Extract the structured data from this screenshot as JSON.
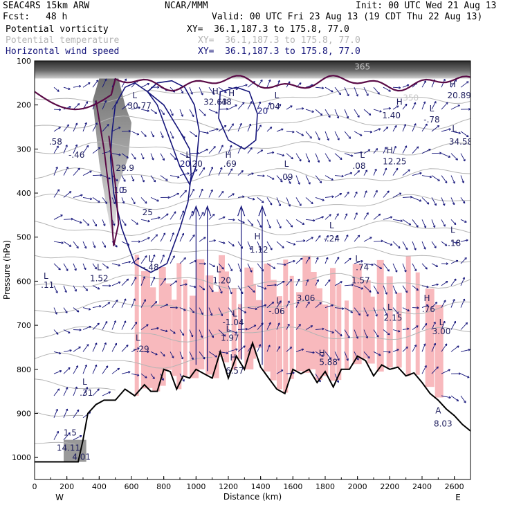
{
  "header": {
    "model": "SEAC4RS 15km ARW",
    "org": "NCAR/MMM",
    "init": "Init: 00 UTC Wed 21 Aug 13",
    "fcst_label": "Fcst:",
    "fcst_value": "48 h",
    "valid": "Valid: 00 UTC Fri 23 Aug 13 (19 CDT Thu 22 Aug 13)"
  },
  "fields": [
    {
      "name": "Potential vorticity",
      "xy": "XY=  36.1,187.3 to 175.8, 77.0",
      "color": "#000000"
    },
    {
      "name": "Potential temperature",
      "xy": "XY=  36.1,187.3 to 175.8, 77.0",
      "color": "#b4b4b4"
    },
    {
      "name": "Horizontal wind speed",
      "xy": "XY=  36.1,187.3 to 175.8, 77.0",
      "color": "#14147a"
    }
  ],
  "colors": {
    "pv_high": "#e8e8e8",
    "pv_contour": "#5a0a46",
    "theta": "#b4b4b4",
    "wind": "#14147a",
    "pink": "#f8b9bd",
    "terrain": "#000000"
  },
  "chart_data": {
    "type": "cross-section",
    "xlabel": "Distance (km)",
    "ylabel": "Pressure (hPa)",
    "xlim": [
      0,
      2700
    ],
    "ylim": [
      1050,
      100
    ],
    "x_ticks": [
      "0",
      "200",
      "400",
      "600",
      "800",
      "1000",
      "1200",
      "1400",
      "1600",
      "1800",
      "2000",
      "2200",
      "2400",
      "2600"
    ],
    "y_ticks": [
      "100",
      "200",
      "300",
      "400",
      "500",
      "600",
      "700",
      "800",
      "900",
      "1000"
    ],
    "end_labels": {
      "left": "W",
      "right": "E"
    },
    "terrain": {
      "x": [
        0,
        270,
        300,
        330,
        380,
        430,
        500,
        560,
        620,
        680,
        720,
        760,
        800,
        840,
        880,
        920,
        960,
        1000,
        1050,
        1100,
        1150,
        1200,
        1250,
        1300,
        1350,
        1400,
        1450,
        1500,
        1550,
        1600,
        1650,
        1700,
        1750,
        1800,
        1850,
        1900,
        1950,
        2000,
        2050,
        2100,
        2150,
        2200,
        2250,
        2300,
        2350,
        2400,
        2450,
        2500,
        2550,
        2600,
        2650,
        2700
      ],
      "p": [
        1010,
        1010,
        960,
        900,
        880,
        870,
        870,
        845,
        860,
        835,
        850,
        850,
        800,
        805,
        845,
        815,
        820,
        800,
        810,
        820,
        760,
        820,
        770,
        800,
        740,
        795,
        820,
        845,
        855,
        800,
        810,
        800,
        830,
        805,
        840,
        800,
        800,
        770,
        780,
        815,
        790,
        800,
        795,
        815,
        808,
        830,
        855,
        870,
        890,
        905,
        925,
        940
      ]
    },
    "wind_speed_contours": [
      {
        "label": "10",
        "x": [
          500,
          480,
          470,
          490,
          540,
          620,
          720,
          820,
          900,
          950,
          970,
          960,
          900,
          800,
          700,
          620,
          560,
          500
        ],
        "p": [
          200,
          260,
          320,
          400,
          480,
          560,
          580,
          560,
          480,
          420,
          360,
          300,
          260,
          200,
          170,
          150,
          160,
          200
        ]
      },
      {
        "label": "20",
        "x": [
          700,
          760,
          820,
          900,
          960,
          1000,
          1020,
          990,
          930,
          850,
          760,
          700
        ],
        "p": [
          170,
          200,
          260,
          340,
          380,
          340,
          260,
          200,
          160,
          145,
          150,
          170
        ]
      },
      {
        "label": "20",
        "x": [
          1150,
          1250,
          1330,
          1380,
          1370,
          1300,
          1200,
          1140,
          1150
        ],
        "p": [
          170,
          160,
          170,
          220,
          280,
          300,
          280,
          230,
          170
        ]
      }
    ],
    "pv_labels": [
      {
        "t": "H",
        "x": 1120,
        "p": 175
      },
      {
        "t": "32.63",
        "x": 1120,
        "p": 200
      },
      {
        "t": "L",
        "x": 620,
        "p": 185
      },
      {
        "t": "30.77",
        "x": 650,
        "p": 208
      },
      {
        "t": "H",
        "x": 1220,
        "p": 180
      },
      {
        "t": ".48",
        "x": 1180,
        "p": 200
      },
      {
        "t": "L",
        "x": 1500,
        "p": 185
      },
      {
        "t": ".04",
        "x": 1480,
        "p": 210
      },
      {
        "t": ".58",
        "x": 130,
        "p": 290
      },
      {
        "t": "-.46",
        "x": 260,
        "p": 320
      },
      {
        "t": "29.9",
        "x": 560,
        "p": 350
      },
      {
        "t": ".5",
        "x": 550,
        "p": 400
      },
      {
        "t": "25",
        "x": 700,
        "p": 450
      },
      {
        "t": "L",
        "x": 950,
        "p": 320
      },
      {
        "t": ".20",
        "x": 1000,
        "p": 340
      },
      {
        "t": "H",
        "x": 1200,
        "p": 320
      },
      {
        "t": ".69",
        "x": 1210,
        "p": 340
      },
      {
        "t": "L",
        "x": 1560,
        "p": 340
      },
      {
        "t": ".09",
        "x": 1560,
        "p": 370
      },
      {
        "t": "L",
        "x": 2030,
        "p": 320
      },
      {
        "t": ".08",
        "x": 2010,
        "p": 345
      },
      {
        "t": "H",
        "x": 2200,
        "p": 310
      },
      {
        "t": "12.25",
        "x": 2230,
        "p": 335
      },
      {
        "t": "H",
        "x": 2260,
        "p": 200
      },
      {
        "t": "1.40",
        "x": 2210,
        "p": 230
      },
      {
        "t": "L",
        "x": 2460,
        "p": 215
      },
      {
        "t": "-.78",
        "x": 2460,
        "p": 240
      },
      {
        "t": "H",
        "x": 2590,
        "p": 160
      },
      {
        "t": "20.89",
        "x": 2630,
        "p": 185
      },
      {
        "t": "L",
        "x": 2600,
        "p": 260
      },
      {
        "t": "34.58",
        "x": 2640,
        "p": 290
      },
      {
        "t": "L",
        "x": 1840,
        "p": 480
      },
      {
        "t": "-.24",
        "x": 1840,
        "p": 510
      },
      {
        "t": "L",
        "x": 2590,
        "p": 490
      },
      {
        "t": ".18",
        "x": 2600,
        "p": 520
      },
      {
        "t": "H",
        "x": 1380,
        "p": 505
      },
      {
        "t": "1.12",
        "x": 1390,
        "p": 535
      },
      {
        "t": "L",
        "x": 720,
        "p": 555
      },
      {
        "t": "-.48",
        "x": 720,
        "p": 575
      },
      {
        "t": "L",
        "x": 2000,
        "p": 555
      },
      {
        "t": ".74",
        "x": 2030,
        "p": 575
      },
      {
        "t": "L",
        "x": 400,
        "p": 575
      },
      {
        "t": "1.52",
        "x": 400,
        "p": 600
      },
      {
        "t": "L",
        "x": 1140,
        "p": 580
      },
      {
        "t": "1.20",
        "x": 1160,
        "p": 605
      },
      {
        "t": "1.57",
        "x": 2020,
        "p": 605
      },
      {
        "t": "L",
        "x": 70,
        "p": 595
      },
      {
        "t": ".11",
        "x": 80,
        "p": 615
      },
      {
        "t": "3.06",
        "x": 1680,
        "p": 645
      },
      {
        "t": "H",
        "x": 2430,
        "p": 645
      },
      {
        "t": "L",
        "x": 1510,
        "p": 650
      },
      {
        "t": "-.06",
        "x": 1500,
        "p": 675
      },
      {
        "t": ".76",
        "x": 2440,
        "p": 670
      },
      {
        "t": "L",
        "x": 1240,
        "p": 680
      },
      {
        "t": "-1.04",
        "x": 1230,
        "p": 700
      },
      {
        "t": "L",
        "x": 2200,
        "p": 665
      },
      {
        "t": "2.15",
        "x": 2220,
        "p": 690
      },
      {
        "t": "L",
        "x": 2520,
        "p": 700
      },
      {
        "t": "3.00",
        "x": 2520,
        "p": 720
      },
      {
        "t": "L",
        "x": 1200,
        "p": 715
      },
      {
        "t": "1.97",
        "x": 1210,
        "p": 735
      },
      {
        "t": "L",
        "x": 640,
        "p": 735
      },
      {
        "t": "-.29",
        "x": 660,
        "p": 760
      },
      {
        "t": "H",
        "x": 1780,
        "p": 770
      },
      {
        "t": "5.88",
        "x": 1820,
        "p": 790
      },
      {
        "t": "H",
        "x": 1230,
        "p": 780
      },
      {
        "t": "6.57",
        "x": 1240,
        "p": 810
      },
      {
        "t": "L",
        "x": 310,
        "p": 835
      },
      {
        "t": ".31",
        "x": 320,
        "p": 860
      },
      {
        "t": "A",
        "x": 2500,
        "p": 900
      },
      {
        "t": "8.03",
        "x": 2530,
        "p": 930
      },
      {
        "t": "1.5",
        "x": 220,
        "p": 950
      },
      {
        "t": "14.11",
        "x": 210,
        "p": 985
      },
      {
        "t": "4.01",
        "x": 290,
        "p": 1005
      }
    ],
    "theta_labels": [
      {
        "t": "365",
        "x": 2030,
        "p": 120
      },
      {
        "t": "350",
        "x": 2330,
        "p": 190
      }
    ]
  }
}
